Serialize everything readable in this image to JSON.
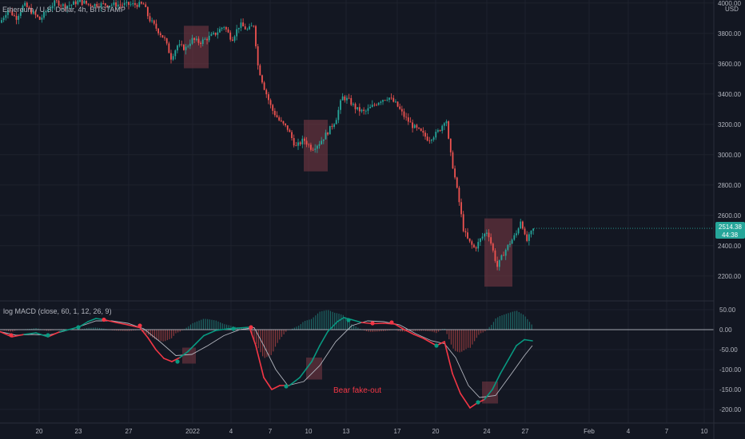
{
  "header": {
    "symbol_label": "Ethereum / U.S. Dollar, 4h, BITSTAMP",
    "currency": "USD"
  },
  "indicator_label": "log MACD (close, 60, 1, 12, 26, 9)",
  "price_badge": {
    "price": "2514.38",
    "countdown": "44:38",
    "color": "#26a69a"
  },
  "colors": {
    "up": "#26a69a",
    "down": "#ef5350",
    "macd_bull": "#089981",
    "macd_bear": "#f23645",
    "signal": "#b2b5be",
    "box": "#7e3a46"
  },
  "chart_data": [
    {
      "type": "candlestick",
      "interval": "4h",
      "yaxis": {
        "ticks": [
          4000,
          3800,
          3600,
          3400,
          3200,
          3000,
          2800,
          2600,
          2400,
          2200
        ],
        "tick_labels": [
          "4000.00",
          "3800.00",
          "3600.00",
          "3400.00",
          "3200.00",
          "3000.00",
          "2800.00",
          "2600.00",
          "2400.00",
          "2200.00"
        ],
        "ylim": [
          2075,
          4015
        ]
      },
      "xaxis": {
        "tick_labels": [
          "20",
          "23",
          "27",
          "2022",
          "4",
          "7",
          "10",
          "13",
          "17",
          "20",
          "24",
          "27",
          "Feb",
          "4",
          "7",
          "10"
        ]
      },
      "grid": true,
      "last_price": 2514.38,
      "price_path": [
        [
          0,
          3870
        ],
        [
          10,
          3960
        ],
        [
          20,
          3900
        ],
        [
          30,
          3990
        ],
        [
          40,
          3940
        ],
        [
          50,
          3890
        ],
        [
          60,
          3960
        ],
        [
          70,
          4010
        ],
        [
          80,
          3980
        ],
        [
          90,
          3990
        ],
        [
          100,
          4020
        ],
        [
          110,
          3990
        ],
        [
          120,
          3990
        ],
        [
          130,
          3990
        ],
        [
          140,
          3990
        ],
        [
          150,
          3990
        ],
        [
          160,
          3990
        ],
        [
          170,
          3990
        ],
        [
          180,
          3990
        ],
        [
          186,
          3900
        ],
        [
          196,
          3830
        ],
        [
          206,
          3760
        ],
        [
          214,
          3640
        ],
        [
          222,
          3720
        ],
        [
          232,
          3700
        ],
        [
          240,
          3760
        ],
        [
          250,
          3740
        ],
        [
          260,
          3770
        ],
        [
          270,
          3800
        ],
        [
          280,
          3850
        ],
        [
          290,
          3760
        ],
        [
          300,
          3860
        ],
        [
          310,
          3820
        ],
        [
          318,
          3860
        ],
        [
          322,
          3600
        ],
        [
          330,
          3450
        ],
        [
          340,
          3300
        ],
        [
          350,
          3220
        ],
        [
          360,
          3170
        ],
        [
          370,
          3050
        ],
        [
          380,
          3100
        ],
        [
          390,
          3040
        ],
        [
          400,
          3080
        ],
        [
          410,
          3150
        ],
        [
          420,
          3230
        ],
        [
          428,
          3380
        ],
        [
          436,
          3360
        ],
        [
          446,
          3300
        ],
        [
          456,
          3280
        ],
        [
          466,
          3320
        ],
        [
          476,
          3360
        ],
        [
          486,
          3380
        ],
        [
          496,
          3330
        ],
        [
          506,
          3250
        ],
        [
          516,
          3190
        ],
        [
          526,
          3150
        ],
        [
          536,
          3100
        ],
        [
          546,
          3140
        ],
        [
          552,
          3180
        ],
        [
          558,
          3250
        ],
        [
          562,
          3050
        ],
        [
          568,
          2880
        ],
        [
          574,
          2700
        ],
        [
          580,
          2500
        ],
        [
          586,
          2430
        ],
        [
          594,
          2380
        ],
        [
          602,
          2450
        ],
        [
          610,
          2500
        ],
        [
          616,
          2380
        ],
        [
          622,
          2260
        ],
        [
          630,
          2350
        ],
        [
          638,
          2420
        ],
        [
          646,
          2480
        ],
        [
          652,
          2580
        ],
        [
          658,
          2420
        ],
        [
          664,
          2480
        ],
        [
          668,
          2514
        ]
      ],
      "shaded_boxes": [
        {
          "x_range": [
            230,
            261
          ],
          "price_range": [
            3570,
            3850
          ]
        },
        {
          "x_range": [
            380,
            410
          ],
          "price_range": [
            2890,
            3230
          ]
        },
        {
          "x_range": [
            606,
            641
          ],
          "price_range": [
            2130,
            2580
          ]
        }
      ]
    },
    {
      "type": "line",
      "name": "log MACD",
      "yaxis": {
        "ticks": [
          50,
          0,
          -50,
          -100,
          -150,
          -200
        ],
        "tick_labels": [
          "50.00",
          "0.00",
          "-50.00",
          "-100.00",
          "-150.00",
          "-200.00"
        ],
        "ylim": [
          -215,
          70
        ]
      },
      "series": [
        {
          "role": "macd",
          "points": [
            [
              0,
              -5
            ],
            [
              15,
              -18
            ],
            [
              30,
              -12
            ],
            [
              45,
              -8
            ],
            [
              60,
              -18
            ],
            [
              75,
              -5
            ],
            [
              90,
              2
            ],
            [
              100,
              8
            ],
            [
              110,
              20
            ],
            [
              120,
              28
            ],
            [
              130,
              25
            ],
            [
              145,
              18
            ],
            [
              160,
              12
            ],
            [
              175,
              5
            ],
            [
              185,
              -20
            ],
            [
              195,
              -50
            ],
            [
              205,
              -72
            ],
            [
              215,
              -80
            ],
            [
              225,
              -70
            ],
            [
              235,
              -55
            ],
            [
              245,
              -35
            ],
            [
              255,
              -15
            ],
            [
              270,
              -2
            ],
            [
              285,
              2
            ],
            [
              298,
              4
            ],
            [
              312,
              6
            ],
            [
              320,
              -40
            ],
            [
              330,
              -120
            ],
            [
              340,
              -150
            ],
            [
              350,
              -140
            ],
            [
              362,
              -140
            ],
            [
              375,
              -120
            ],
            [
              390,
              -80
            ],
            [
              400,
              -40
            ],
            [
              410,
              -5
            ],
            [
              422,
              20
            ],
            [
              430,
              30
            ],
            [
              440,
              25
            ],
            [
              452,
              18
            ],
            [
              466,
              15
            ],
            [
              480,
              16
            ],
            [
              494,
              14
            ],
            [
              506,
              0
            ],
            [
              518,
              -12
            ],
            [
              530,
              -22
            ],
            [
              546,
              -40
            ],
            [
              556,
              -30
            ],
            [
              566,
              -110
            ],
            [
              576,
              -160
            ],
            [
              588,
              -196
            ],
            [
              596,
              -185
            ],
            [
              606,
              -175
            ],
            [
              616,
              -150
            ],
            [
              626,
              -110
            ],
            [
              636,
              -75
            ],
            [
              646,
              -40
            ],
            [
              656,
              -25
            ],
            [
              666,
              -28
            ]
          ]
        },
        {
          "role": "signal",
          "points": [
            [
              0,
              -5
            ],
            [
              20,
              -14
            ],
            [
              40,
              -12
            ],
            [
              60,
              -14
            ],
            [
              80,
              -4
            ],
            [
              100,
              8
            ],
            [
              120,
              22
            ],
            [
              140,
              22
            ],
            [
              160,
              16
            ],
            [
              180,
              2
            ],
            [
              200,
              -30
            ],
            [
              220,
              -65
            ],
            [
              240,
              -62
            ],
            [
              260,
              -40
            ],
            [
              280,
              -15
            ],
            [
              300,
              0
            ],
            [
              318,
              5
            ],
            [
              330,
              -40
            ],
            [
              345,
              -100
            ],
            [
              360,
              -140
            ],
            [
              380,
              -130
            ],
            [
              400,
              -90
            ],
            [
              420,
              -30
            ],
            [
              440,
              10
            ],
            [
              460,
              22
            ],
            [
              480,
              20
            ],
            [
              500,
              12
            ],
            [
              520,
              -10
            ],
            [
              540,
              -28
            ],
            [
              556,
              -35
            ],
            [
              570,
              -70
            ],
            [
              586,
              -140
            ],
            [
              600,
              -170
            ],
            [
              620,
              -165
            ],
            [
              640,
              -110
            ],
            [
              656,
              -65
            ],
            [
              666,
              -40
            ]
          ]
        }
      ],
      "histogram_x_range": [
        0,
        666
      ],
      "crossover_markers": [
        {
          "x": 14,
          "y": -14,
          "kind": "bear"
        },
        {
          "x": 60,
          "y": -14,
          "kind": "bull"
        },
        {
          "x": 98,
          "y": 6,
          "kind": "bull"
        },
        {
          "x": 130,
          "y": 25,
          "kind": "bear"
        },
        {
          "x": 175,
          "y": 10,
          "kind": "bear"
        },
        {
          "x": 222,
          "y": -80,
          "kind": "bull"
        },
        {
          "x": 292,
          "y": 2,
          "kind": "bull"
        },
        {
          "x": 314,
          "y": 6,
          "kind": "bear"
        },
        {
          "x": 358,
          "y": -142,
          "kind": "bull"
        },
        {
          "x": 436,
          "y": 24,
          "kind": "bull"
        },
        {
          "x": 466,
          "y": 16,
          "kind": "bear"
        },
        {
          "x": 490,
          "y": 18,
          "kind": "bear"
        },
        {
          "x": 546,
          "y": -40,
          "kind": "bull"
        },
        {
          "x": 598,
          "y": -182,
          "kind": "bull"
        }
      ],
      "shaded_boxes": [
        {
          "x_range": [
            228,
            245
          ],
          "macd_range": [
            -85,
            -45
          ]
        },
        {
          "x_range": [
            383,
            403
          ],
          "macd_range": [
            -125,
            -70
          ]
        },
        {
          "x_range": [
            603,
            623
          ],
          "macd_range": [
            -185,
            -130
          ]
        }
      ],
      "annotations": [
        {
          "text": "Bear fake-out",
          "x": 417,
          "y": -150
        }
      ]
    }
  ]
}
